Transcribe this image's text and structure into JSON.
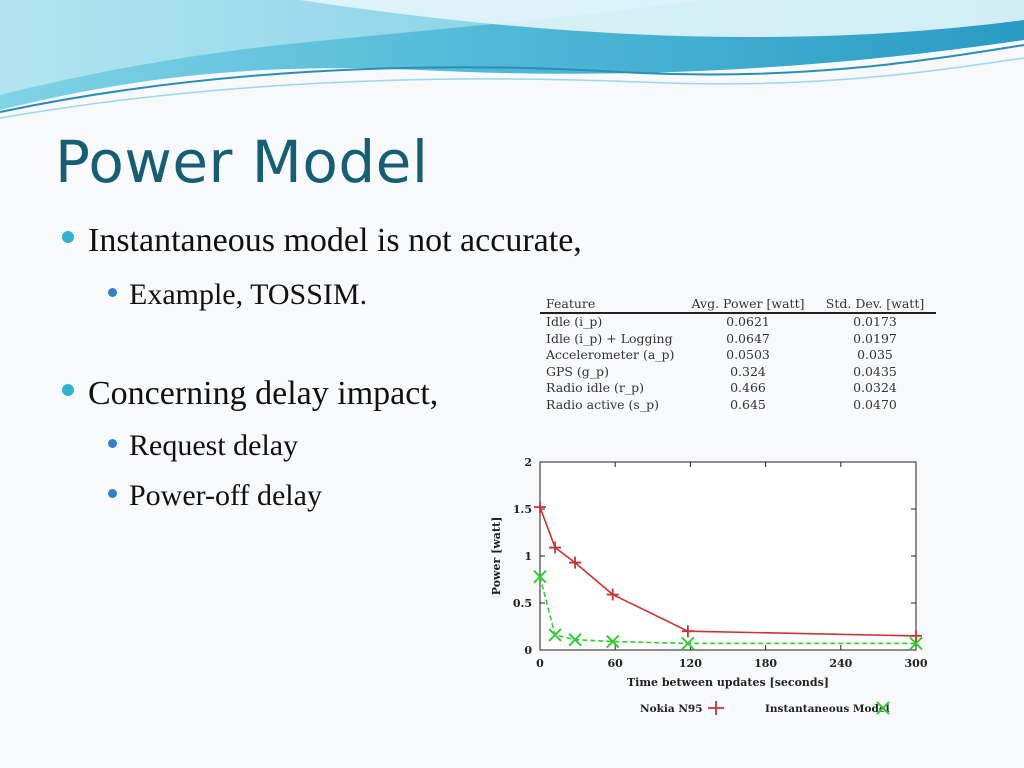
{
  "slide": {
    "title": "Power Model",
    "bullets": [
      {
        "text": "Instantaneous model is not accurate,",
        "sub": [
          "Example, TOSSIM."
        ]
      },
      {
        "text": "Concerning delay impact,",
        "sub": [
          "Request delay",
          "Power-off delay"
        ]
      }
    ]
  },
  "table": {
    "headers": [
      "Feature",
      "Avg. Power [watt]",
      "Std. Dev. [watt]"
    ],
    "rows": [
      [
        "Idle (i_p)",
        "0.0621",
        "0.0173"
      ],
      [
        "Idle (i_p) + Logging",
        "0.0647",
        "0.0197"
      ],
      [
        "Accelerometer (a_p)",
        "0.0503",
        "0.035"
      ],
      [
        "GPS (g_p)",
        "0.324",
        "0.0435"
      ],
      [
        "Radio idle (r_p)",
        "0.466",
        "0.0324"
      ],
      [
        "Radio active (s_p)",
        "0.645",
        "0.0470"
      ]
    ]
  },
  "colors": {
    "title": "#165e73",
    "bullet1": "#2fb3cf",
    "series1": "#cc3333",
    "series2": "#33cc33"
  },
  "chart_data": {
    "type": "line",
    "xlabel": "Time between updates [seconds]",
    "ylabel": "Power [watt]",
    "xlim": [
      0,
      300
    ],
    "ylim": [
      0,
      2
    ],
    "xticks": [
      0,
      60,
      120,
      180,
      240,
      300
    ],
    "yticks": [
      0,
      0.5,
      1,
      1.5,
      2
    ],
    "ytick_labels": [
      "0",
      "0.5",
      "1",
      "1.5",
      "2"
    ],
    "legend_position": "bottom",
    "grid": false,
    "series": [
      {
        "name": "Nokia N95",
        "marker": "+",
        "style": "solid",
        "x": [
          0,
          12,
          28,
          58,
          118,
          300
        ],
        "y": [
          1.52,
          1.09,
          0.93,
          0.59,
          0.2,
          0.15
        ]
      },
      {
        "name": "Instantaneous Model",
        "marker": "x",
        "style": "dashed",
        "x": [
          0,
          12,
          28,
          58,
          118,
          300
        ],
        "y": [
          0.78,
          0.16,
          0.11,
          0.09,
          0.07,
          0.07
        ]
      }
    ]
  }
}
